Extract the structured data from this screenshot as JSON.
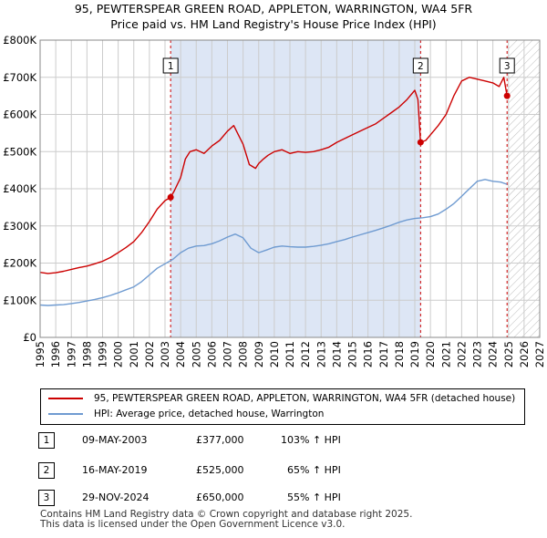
{
  "title_line1": "95, PEWTERSPEAR GREEN ROAD, APPLETON, WARRINGTON, WA4 5FR",
  "title_line2": "Price paid vs. HM Land Registry's House Price Index (HPI)",
  "colors": {
    "property": "#cc0000",
    "hpi": "#6f9bd1",
    "shade": "#dde6f5",
    "grid": "#cccccc"
  },
  "chart_data": {
    "type": "line",
    "title": "95, PEWTERSPEAR GREEN ROAD, APPLETON, WARRINGTON, WA4 5FR — Price paid vs. HM Land Registry's House Price Index (HPI)",
    "xlabel": "",
    "ylabel": "",
    "xlim": [
      1995,
      2027
    ],
    "ylim": [
      0,
      800000
    ],
    "x_ticks": [
      1995,
      1996,
      1997,
      1998,
      1999,
      2000,
      2001,
      2002,
      2003,
      2004,
      2005,
      2006,
      2007,
      2008,
      2009,
      2010,
      2011,
      2012,
      2013,
      2014,
      2015,
      2016,
      2017,
      2018,
      2019,
      2020,
      2021,
      2022,
      2023,
      2024,
      2025,
      2026,
      2027
    ],
    "y_ticks": [
      {
        "value": 0,
        "label": "£0"
      },
      {
        "value": 100000,
        "label": "£100K"
      },
      {
        "value": 200000,
        "label": "£200K"
      },
      {
        "value": 300000,
        "label": "£300K"
      },
      {
        "value": 400000,
        "label": "£400K"
      },
      {
        "value": 500000,
        "label": "£500K"
      },
      {
        "value": 600000,
        "label": "£600K"
      },
      {
        "value": 700000,
        "label": "£700K"
      },
      {
        "value": 800000,
        "label": "£800K"
      }
    ],
    "grid": true,
    "shaded_ownership_period": [
      2003.36,
      2019.37
    ],
    "future_hatched_from": 2025.0,
    "series": [
      {
        "name": "95, PEWTERSPEAR GREEN ROAD, APPLETON, WARRINGTON, WA4 5FR (detached house)",
        "color": "#cc0000",
        "x": [
          1995.0,
          1995.5,
          1996.0,
          1996.5,
          1997.0,
          1997.5,
          1998.0,
          1998.5,
          1999.0,
          1999.5,
          2000.0,
          2000.5,
          2001.0,
          2001.5,
          2002.0,
          2002.5,
          2003.0,
          2003.36,
          2003.6,
          2004.0,
          2004.3,
          2004.6,
          2005.0,
          2005.5,
          2006.0,
          2006.5,
          2007.0,
          2007.4,
          2007.7,
          2008.0,
          2008.4,
          2008.8,
          2009.0,
          2009.3,
          2009.6,
          2010.0,
          2010.5,
          2011.0,
          2011.5,
          2012.0,
          2012.5,
          2013.0,
          2013.5,
          2014.0,
          2014.5,
          2015.0,
          2015.5,
          2016.0,
          2016.5,
          2017.0,
          2017.5,
          2018.0,
          2018.5,
          2019.0,
          2019.2,
          2019.37,
          2019.7,
          2020.0,
          2020.5,
          2021.0,
          2021.5,
          2022.0,
          2022.5,
          2023.0,
          2023.5,
          2024.0,
          2024.4,
          2024.7,
          2024.91
        ],
        "values": [
          175000,
          172000,
          174000,
          178000,
          183000,
          188000,
          192000,
          198000,
          205000,
          215000,
          228000,
          242000,
          258000,
          282000,
          312000,
          345000,
          368000,
          377000,
          395000,
          430000,
          480000,
          500000,
          505000,
          495000,
          515000,
          530000,
          555000,
          570000,
          545000,
          520000,
          465000,
          455000,
          468000,
          480000,
          490000,
          500000,
          505000,
          495000,
          500000,
          498000,
          500000,
          505000,
          512000,
          525000,
          535000,
          545000,
          555000,
          565000,
          575000,
          590000,
          605000,
          620000,
          640000,
          665000,
          640000,
          525000,
          530000,
          545000,
          570000,
          600000,
          650000,
          690000,
          700000,
          695000,
          690000,
          685000,
          675000,
          700000,
          650000
        ]
      },
      {
        "name": "HPI: Average price, detached house, Warrington",
        "color": "#6f9bd1",
        "x": [
          1995.0,
          1995.5,
          1996.0,
          1996.5,
          1997.0,
          1997.5,
          1998.0,
          1998.5,
          1999.0,
          1999.5,
          2000.0,
          2000.5,
          2001.0,
          2001.5,
          2002.0,
          2002.5,
          2003.0,
          2003.5,
          2004.0,
          2004.5,
          2005.0,
          2005.5,
          2006.0,
          2006.5,
          2007.0,
          2007.5,
          2008.0,
          2008.5,
          2009.0,
          2009.5,
          2010.0,
          2010.5,
          2011.0,
          2011.5,
          2012.0,
          2012.5,
          2013.0,
          2013.5,
          2014.0,
          2014.5,
          2015.0,
          2015.5,
          2016.0,
          2016.5,
          2017.0,
          2017.5,
          2018.0,
          2018.5,
          2019.0,
          2019.5,
          2020.0,
          2020.5,
          2021.0,
          2021.5,
          2022.0,
          2022.5,
          2023.0,
          2023.5,
          2024.0,
          2024.5,
          2024.91
        ],
        "values": [
          87000,
          86000,
          87000,
          88000,
          91000,
          94000,
          98000,
          102000,
          107000,
          113000,
          120000,
          128000,
          136000,
          150000,
          168000,
          186000,
          198000,
          210000,
          228000,
          240000,
          246000,
          247000,
          252000,
          260000,
          270000,
          278000,
          268000,
          240000,
          228000,
          235000,
          243000,
          246000,
          244000,
          243000,
          243000,
          245000,
          248000,
          252000,
          258000,
          263000,
          270000,
          276000,
          282000,
          288000,
          295000,
          302000,
          310000,
          316000,
          320000,
          322000,
          325000,
          332000,
          345000,
          360000,
          380000,
          400000,
          420000,
          425000,
          420000,
          418000,
          412000
        ]
      }
    ],
    "annotations": [
      {
        "label": "1",
        "x": 2003.36,
        "value": 377000
      },
      {
        "label": "2",
        "x": 2019.37,
        "value": 525000
      },
      {
        "label": "3",
        "x": 2024.91,
        "value": 650000
      }
    ]
  },
  "legend": {
    "property": "95, PEWTERSPEAR GREEN ROAD, APPLETON, WARRINGTON, WA4 5FR (detached house)",
    "hpi": "HPI: Average price, detached house, Warrington"
  },
  "sales": [
    {
      "num": "1",
      "date": "09-MAY-2003",
      "price": "£377,000",
      "hpi": "103% ↑ HPI"
    },
    {
      "num": "2",
      "date": "16-MAY-2019",
      "price": "£525,000",
      "hpi": "65% ↑ HPI"
    },
    {
      "num": "3",
      "date": "29-NOV-2024",
      "price": "£650,000",
      "hpi": "55% ↑ HPI"
    }
  ],
  "footer": {
    "line1": "Contains HM Land Registry data © Crown copyright and database right 2025.",
    "line2": "This data is licensed under the Open Government Licence v3.0."
  }
}
